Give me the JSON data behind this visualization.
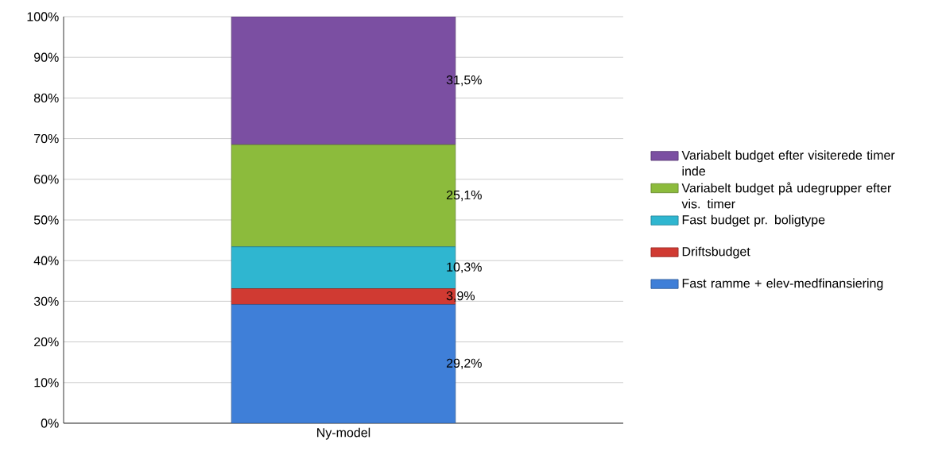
{
  "chart_data": {
    "type": "bar",
    "stacked": true,
    "categories": [
      "Ny-model"
    ],
    "series": [
      {
        "name": "Fast ramme + elev-medfinansiering",
        "color": "#3f7fd8",
        "values": [
          29.2
        ],
        "value_labels": [
          "29,2%"
        ]
      },
      {
        "name": "Driftsbudget",
        "color": "#d03a32",
        "values": [
          3.9
        ],
        "value_labels": [
          "3,9%"
        ]
      },
      {
        "name": "Fast budget pr. boligtype",
        "color": "#2fb6d0",
        "values": [
          10.3
        ],
        "value_labels": [
          "10,3%"
        ]
      },
      {
        "name": "Variabelt budget på udegrupper efter vis. timer",
        "color": "#8cbb3c",
        "values": [
          25.1
        ],
        "value_labels": [
          "25,1%"
        ]
      },
      {
        "name": "Variabelt budget efter visiterede timer inde",
        "color": "#7b4fa2",
        "values": [
          31.5
        ],
        "value_labels": [
          "31,5%"
        ]
      }
    ],
    "ylim": [
      0,
      100
    ],
    "yticks": [
      {
        "value": 0,
        "label": "0%"
      },
      {
        "value": 10,
        "label": "10%"
      },
      {
        "value": 20,
        "label": "20%"
      },
      {
        "value": 30,
        "label": "30%"
      },
      {
        "value": 40,
        "label": "40%"
      },
      {
        "value": 50,
        "label": "50%"
      },
      {
        "value": 60,
        "label": "60%"
      },
      {
        "value": 70,
        "label": "70%"
      },
      {
        "value": 80,
        "label": "80%"
      },
      {
        "value": 90,
        "label": "90%"
      },
      {
        "value": 100,
        "label": "100%"
      }
    ],
    "grid": "y",
    "legend": "right"
  }
}
